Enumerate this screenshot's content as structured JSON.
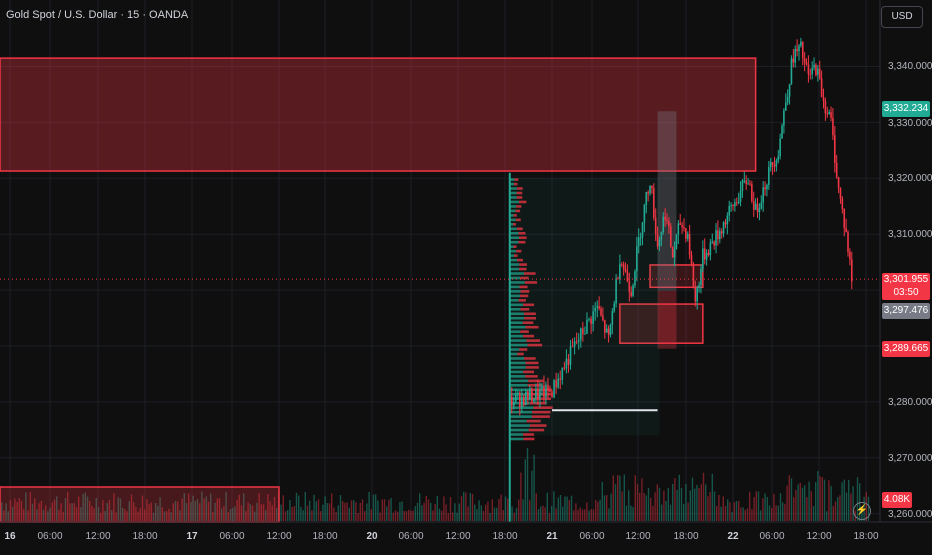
{
  "header": {
    "title": "Gold Spot / U.S. Dollar · 15 · OANDA"
  },
  "price_scale": {
    "currency_label": "USD",
    "ticks": [
      "3,340.000",
      "3,330.000",
      "3,320.000",
      "3,310.000",
      "3,280.000",
      "3,270.000",
      "3,260.000"
    ],
    "labels": {
      "upper_marker": "3,332.234",
      "current_price": "3,301.955",
      "countdown": "03:50",
      "gray_marker": "3,297.476",
      "red_marker": "3,289.665",
      "volume_marker": "4.08K"
    },
    "colors": {
      "teal": "#22ab94",
      "red": "#f23645",
      "gray": "#787b86"
    }
  },
  "time_axis": {
    "labels": [
      "16",
      "06:00",
      "12:00",
      "18:00",
      "17",
      "06:00",
      "12:00",
      "18:00",
      "20",
      "06:00",
      "12:00",
      "18:00",
      "21",
      "06:00",
      "12:00",
      "18:00",
      "22",
      "06:00",
      "12:00",
      "18:00"
    ]
  },
  "icons": {
    "bottom_right": "lightning-icon"
  },
  "chart_data": {
    "type": "candlestick",
    "symbol": "Gold Spot / U.S. Dollar",
    "interval": "15",
    "source": "OANDA",
    "ylim": [
      3258,
      3346
    ],
    "grid": true,
    "up_color": "#22ab94",
    "down_color": "#f23645",
    "price_path": [
      {
        "x": "20 18:00",
        "price": 3280
      },
      {
        "x": "21 00:00",
        "price": 3282
      },
      {
        "x": "21 03:00",
        "price": 3290
      },
      {
        "x": "21 06:00",
        "price": 3297
      },
      {
        "x": "21 07:30",
        "price": 3291
      },
      {
        "x": "21 09:00",
        "price": 3306
      },
      {
        "x": "21 10:30",
        "price": 3300
      },
      {
        "x": "21 12:00",
        "price": 3313
      },
      {
        "x": "21 13:00",
        "price": 3320
      },
      {
        "x": "21 14:00",
        "price": 3308
      },
      {
        "x": "21 15:00",
        "price": 3314
      },
      {
        "x": "21 16:00",
        "price": 3306
      },
      {
        "x": "21 17:00",
        "price": 3312
      },
      {
        "x": "21 18:00",
        "price": 3310
      },
      {
        "x": "21 19:00",
        "price": 3298
      },
      {
        "x": "21 20:00",
        "price": 3306
      },
      {
        "x": "21 22:00",
        "price": 3310
      },
      {
        "x": "22 00:00",
        "price": 3315
      },
      {
        "x": "22 02:00",
        "price": 3320
      },
      {
        "x": "22 03:00",
        "price": 3314
      },
      {
        "x": "22 05:00",
        "price": 3322
      },
      {
        "x": "22 06:00",
        "price": 3325
      },
      {
        "x": "22 07:00",
        "price": 3334
      },
      {
        "x": "22 08:00",
        "price": 3342
      },
      {
        "x": "22 09:00",
        "price": 3343
      },
      {
        "x": "22 10:00",
        "price": 3338
      },
      {
        "x": "22 11:00",
        "price": 3340
      },
      {
        "x": "22 12:00",
        "price": 3334
      },
      {
        "x": "22 13:00",
        "price": 3330
      },
      {
        "x": "22 14:00",
        "price": 3318
      },
      {
        "x": "22 15:00",
        "price": 3310
      },
      {
        "x": "22 15:45",
        "price": 3302
      }
    ],
    "zones": [
      {
        "kind": "supply",
        "price_top": 3341.5,
        "price_bottom": 3321.3,
        "from": "16 00:00",
        "to": "22 03:00"
      },
      {
        "kind": "order-block",
        "price_top": 3304.5,
        "price_bottom": 3300.5,
        "from": "21 13:00",
        "to": "21 20:00"
      },
      {
        "kind": "order-block",
        "price_top": 3297.5,
        "price_bottom": 3290.5,
        "from": "21 09:00",
        "to": "21 20:00"
      },
      {
        "kind": "projection",
        "price_top": 3332,
        "price_bottom": 3289.5,
        "from": "21 14:00",
        "to": "21 16:30"
      }
    ],
    "level_line": {
      "price": 3278.5,
      "from": "21 00:00",
      "to": "21 14:00"
    },
    "current_price": 3301.955
  }
}
